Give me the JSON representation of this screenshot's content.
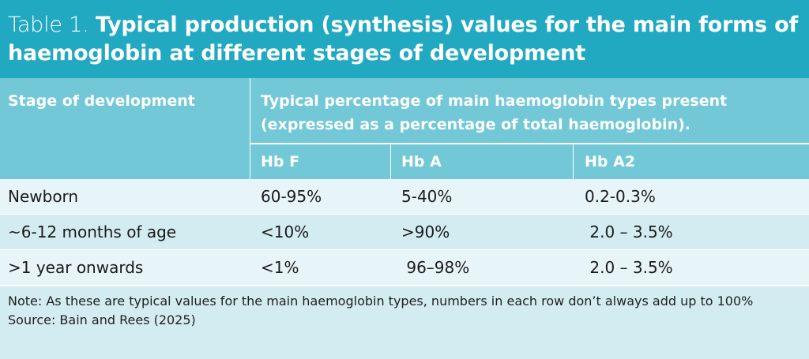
{
  "title": {
    "prefix": "Table 1.",
    "main": "Typical production (synthesis) values for the main forms of haemoglobin at different stages of development"
  },
  "table": {
    "stage_header": "Stage of development",
    "group_header": "Typical percentage of main haemoglobin types present (expressed as a percentage of total haemoglobin).",
    "columns": [
      "Hb F",
      "Hb A",
      "Hb A2"
    ],
    "rows": [
      {
        "stage": "Newborn",
        "hbf": "60-95%",
        "hba": "5-40%",
        "hba2": "0.2-0.3%"
      },
      {
        "stage": "~6-12 months of age",
        "hbf": "<10%",
        "hba": ">90%",
        "hba2": " 2.0 – 3.5%"
      },
      {
        "stage": ">1 year onwards",
        "hbf": "<1%",
        "hba": " 96–98%",
        "hba2": " 2.0 – 3.5%"
      }
    ]
  },
  "notes": {
    "note": "Note: As these are typical values for the main haemoglobin types, numbers in each row don’t always add up to 100%",
    "source": "Source: Bain and Rees (2025)"
  },
  "colors": {
    "title_bg": "#22a9c2",
    "header_bg": "#72c8d7",
    "row_light": "#e8f5f8",
    "row_mid": "#d3ecf2"
  }
}
